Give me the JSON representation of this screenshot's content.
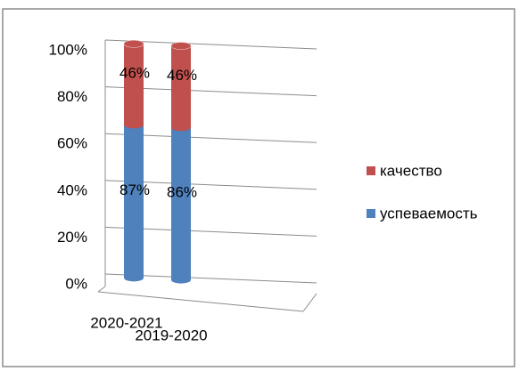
{
  "chart_data": {
    "type": "bar",
    "stack": "percent",
    "categories": [
      "2020-2021",
      "2019-2020"
    ],
    "series": [
      {
        "name": "успеваемость",
        "color": "#4f81bd",
        "values": [
          87,
          86
        ],
        "value_labels": [
          "87%",
          "86%"
        ]
      },
      {
        "name": "качество",
        "color": "#c0504d",
        "values": [
          46,
          46
        ],
        "value_labels": [
          "46%",
          "46%"
        ]
      }
    ],
    "ylim": [
      0,
      100
    ],
    "yticks": [
      {
        "value": 0,
        "label": "0%"
      },
      {
        "value": 20,
        "label": "20%"
      },
      {
        "value": 40,
        "label": "40%"
      },
      {
        "value": 60,
        "label": "60%"
      },
      {
        "value": 80,
        "label": "80%"
      },
      {
        "value": 100,
        "label": "100%"
      }
    ],
    "grid": true,
    "legend": "right"
  }
}
